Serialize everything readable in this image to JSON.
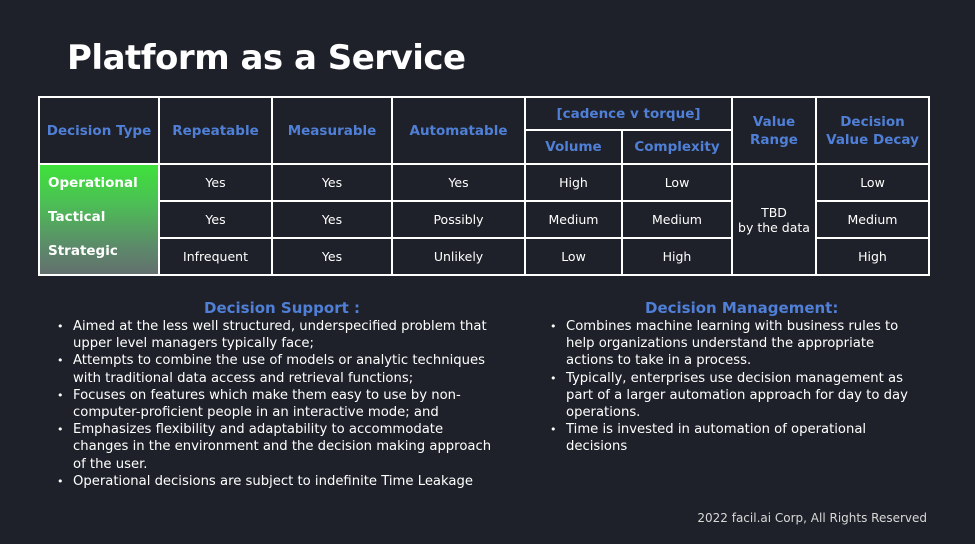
{
  "title": "Platform as a Service",
  "table": {
    "headers": {
      "decision_type": "Decision Type",
      "repeatable": "Repeatable",
      "measurable": "Measurable",
      "automatable": "Automatable",
      "group": "[cadence v torque]",
      "volume": "Volume",
      "complexity": "Complexity",
      "value_range": "Value Range",
      "decay": "Decision Value Decay"
    },
    "types": [
      "Operational",
      "Tactical",
      "Strategic"
    ],
    "rows": [
      {
        "repeatable": "Yes",
        "measurable": "Yes",
        "automatable": "Yes",
        "volume": "High",
        "complexity": "Low",
        "decay": "Low"
      },
      {
        "repeatable": "Yes",
        "measurable": "Yes",
        "automatable": "Possibly",
        "volume": "Medium",
        "complexity": "Medium",
        "decay": "Medium"
      },
      {
        "repeatable": "Infrequent",
        "measurable": "Yes",
        "automatable": "Unlikely",
        "volume": "Low",
        "complexity": "High",
        "decay": "High"
      }
    ],
    "value_range": {
      "line1": "TBD",
      "line2": "by the data"
    },
    "type_gradient": [
      "#3ee23a",
      "#63706e"
    ]
  },
  "support": {
    "title": "Decision Support :",
    "bullets": [
      "Aimed at the less well structured, underspecified problem that upper level managers typically face;",
      "Attempts to combine the use of models or analytic techniques with traditional data access and retrieval functions;",
      "Focuses on features which make them easy to use by non-computer-proficient people in an interactive mode; and",
      "Emphasizes flexibility and adaptability to accommodate changes in the environment and the decision making approach of the user.",
      "Operational decisions are subject to indefinite Time Leakage"
    ]
  },
  "management": {
    "title": "Decision Management:",
    "bullets": [
      "Combines machine learning with business rules to help organizations understand the appropriate actions to take in a process.",
      "Typically, enterprises use decision management as part of a larger automation approach for day to day operations.",
      "Time is invested in automation of operational decisions"
    ]
  },
  "footer": "2022 facil.ai Corp, All Rights Reserved",
  "colors": {
    "background": "#1e2129",
    "accent": "#4f7fd6",
    "text": "#ffffff"
  }
}
